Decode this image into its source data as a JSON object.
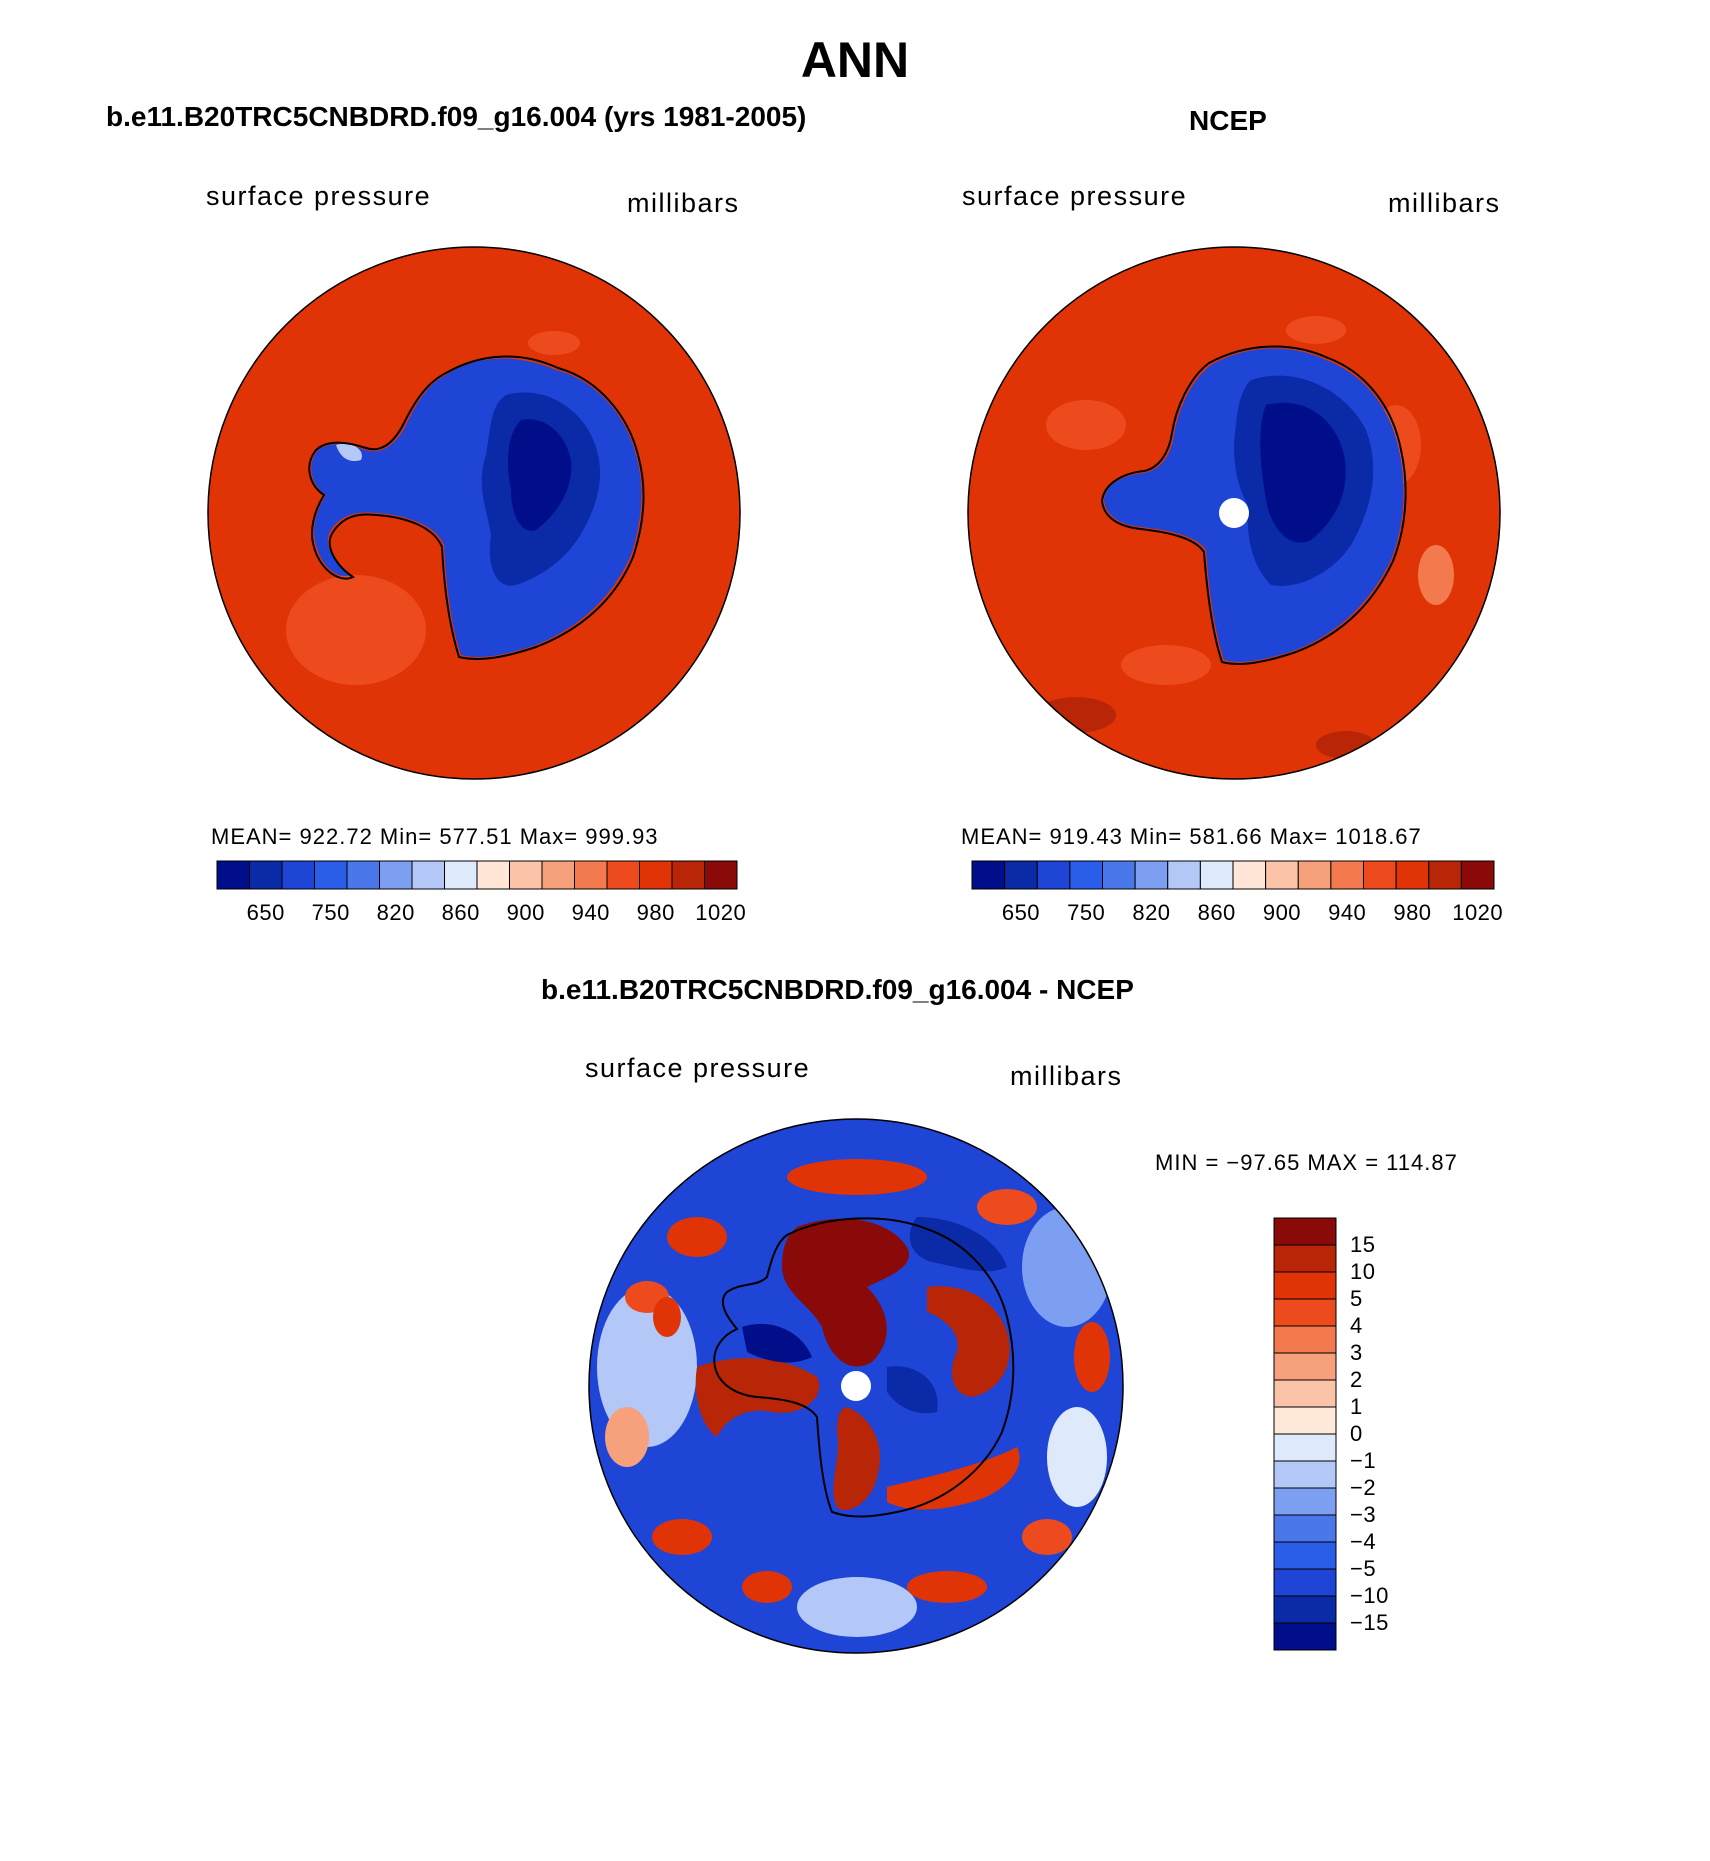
{
  "figure": {
    "title": "ANN",
    "colors": {
      "ocean_red": "#e03a0a",
      "deep_blue": "#0a1a8c",
      "mid_blue": "#1a3fd6",
      "white_core": "#ffffff",
      "outline": "#000000"
    }
  },
  "panels": [
    {
      "title": "b.e11.B20TRC5CNBDRD.f09_g16.004 (yrs 1981-2005)",
      "variable": "surface pressure",
      "units": "millibars",
      "stats_text": "MEAN= 922.72   Min= 577.51   Max= 999.93",
      "colorbar": {
        "colors": [
          "#000e8a",
          "#0a2aa8",
          "#1f45d6",
          "#2a5ee8",
          "#4a78ea",
          "#7d9ff2",
          "#b3c8f7",
          "#deeafc",
          "#ffe6d6",
          "#fbc4a8",
          "#f7a07c",
          "#f27a4e",
          "#ed4a1e",
          "#e03407",
          "#b92507",
          "#8a0a0a"
        ],
        "tick_labels": [
          "650",
          "750",
          "820",
          "860",
          "900",
          "940",
          "980",
          "1020"
        ]
      }
    },
    {
      "title": "NCEP",
      "variable": "surface pressure",
      "units": "millibars",
      "stats_text": "MEAN= 919.43   Min= 581.66   Max= 1018.67",
      "colorbar": {
        "colors": [
          "#000e8a",
          "#0a2aa8",
          "#1f45d6",
          "#2a5ee8",
          "#4a78ea",
          "#7d9ff2",
          "#b3c8f7",
          "#deeafc",
          "#ffe6d6",
          "#fbc4a8",
          "#f7a07c",
          "#f27a4e",
          "#ed4a1e",
          "#e03407",
          "#b92507",
          "#8a0a0a"
        ],
        "tick_labels": [
          "650",
          "750",
          "820",
          "860",
          "900",
          "940",
          "980",
          "1020"
        ]
      }
    },
    {
      "title": "b.e11.B20TRC5CNBDRD.f09_g16.004 - NCEP",
      "variable": "surface pressure",
      "units": "millibars",
      "stats_text": "MIN = −97.65 MAX = 114.87",
      "colorbar": {
        "colors": [
          "#8a0a0a",
          "#b92507",
          "#e03407",
          "#ed4a1e",
          "#f27a4e",
          "#f7a07c",
          "#fbc4a8",
          "#fee9d9",
          "#deeafc",
          "#b3c8f7",
          "#7d9ff2",
          "#4a78ea",
          "#2a5ee8",
          "#1f45d6",
          "#0a2aa8",
          "#000e8a"
        ],
        "tick_labels": [
          "15",
          "10",
          "5",
          "4",
          "3",
          "2",
          "1",
          "0",
          "−1",
          "−2",
          "−3",
          "−4",
          "−5",
          "−10",
          "−15"
        ]
      }
    }
  ]
}
